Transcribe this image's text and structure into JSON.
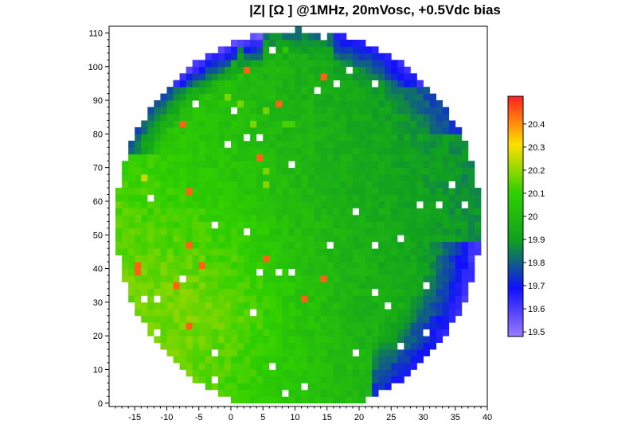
{
  "chart_data": {
    "type": "heatmap",
    "title": "|Z| [Ω ] @1MHz, 20mVosc, +0.5Vdc bias",
    "xlabel": "",
    "ylabel": "",
    "xlim": [
      -19,
      40
    ],
    "ylim": [
      -1,
      112
    ],
    "x_ticks": [
      -15,
      -10,
      -5,
      0,
      5,
      10,
      15,
      20,
      25,
      30,
      35,
      40
    ],
    "y_ticks": [
      0,
      10,
      20,
      30,
      40,
      50,
      60,
      70,
      80,
      90,
      100,
      110
    ],
    "grid": false,
    "colorbar": {
      "min": 19.48,
      "max": 20.52,
      "ticks": [
        "19.5",
        "19.6",
        "19.7",
        "19.8",
        "19.9",
        "20",
        "20.1",
        "20.2",
        "20.3",
        "20.4"
      ],
      "tick_values": [
        19.5,
        19.6,
        19.7,
        19.8,
        19.9,
        20.0,
        20.1,
        20.2,
        20.3,
        20.4
      ],
      "colors": [
        "#9b7bff",
        "#1010ff",
        "#10a020",
        "#30d000",
        "#ffe000",
        "#ff2020"
      ],
      "placement": "right"
    },
    "wafer": {
      "center_x": 10.5,
      "center_y": 54,
      "radius_x": 28.5,
      "radius_y": 57,
      "cell_width": 1,
      "cell_height": 2
    },
    "value_regions": {
      "description_values": {
        "lower_left_region": 20.08,
        "center_region": 20.0,
        "right_region": 19.85,
        "upper_right_edge": 19.72,
        "lower_right_edge": 19.65,
        "top_left_edge": 19.62,
        "outlier_high": 20.45
      }
    }
  }
}
